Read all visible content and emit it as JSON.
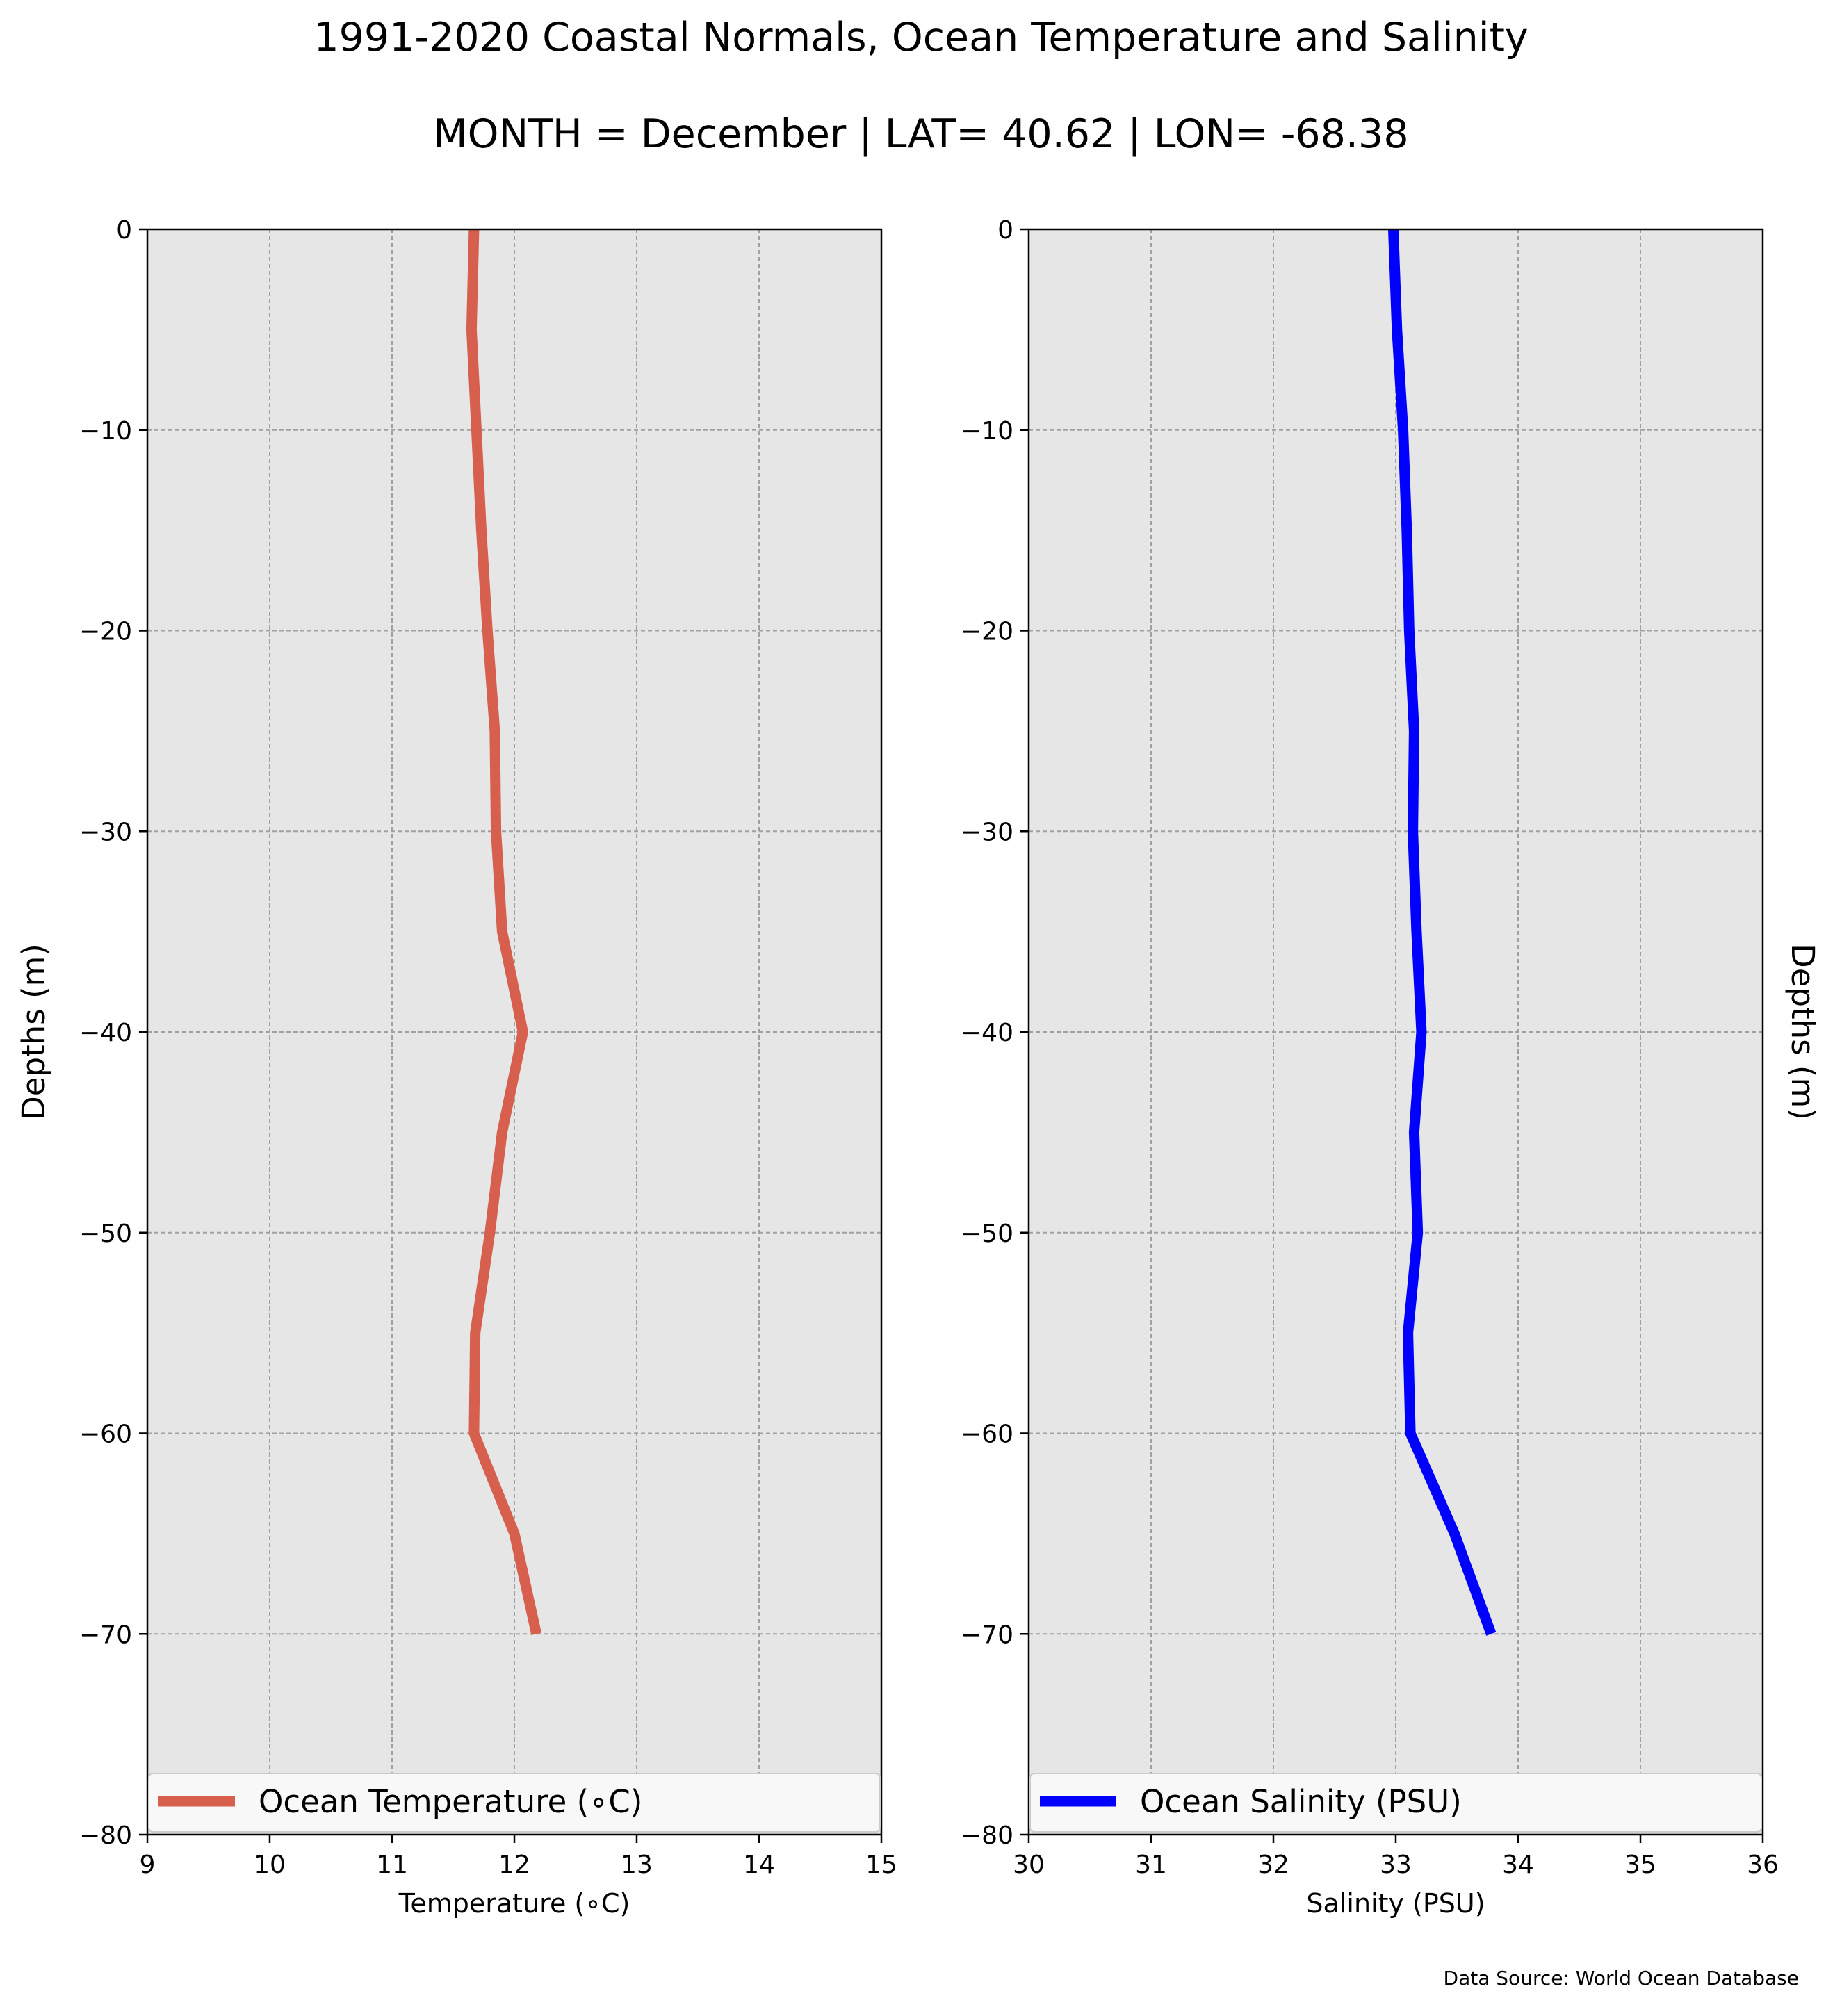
{
  "title": "1991-2020 Coastal Normals, Ocean Temperature and Salinity",
  "subtitle": "MONTH = December | LAT= 40.62 | LON= -68.38",
  "source": "Data Source: World Ocean Database",
  "chart_data": [
    {
      "type": "line",
      "xlabel": "Temperature ($^\\circ$C)",
      "xlabel_display": "Temperature (∘C)",
      "ylabel": "Depths (m)",
      "xlim": [
        9,
        15
      ],
      "ylim": [
        -80,
        0
      ],
      "xticks": [
        "9",
        "10",
        "11",
        "12",
        "13",
        "14",
        "15"
      ],
      "yticks": [
        "0",
        "−10",
        "−20",
        "−30",
        "−40",
        "−50",
        "−60",
        "−70",
        "−80"
      ],
      "grid": true,
      "legend_position": "lower center",
      "series": [
        {
          "name": "Ocean Temperature (∘C)",
          "color": "#d65f4e",
          "depths": [
            0,
            -5,
            -10,
            -15,
            -20,
            -25,
            -30,
            -35,
            -40,
            -45,
            -50,
            -55,
            -60,
            -65,
            -70
          ],
          "values": [
            11.67,
            11.65,
            11.69,
            11.73,
            11.78,
            11.84,
            11.85,
            11.9,
            12.07,
            11.9,
            11.8,
            11.68,
            11.67,
            12.0,
            12.18
          ]
        }
      ]
    },
    {
      "type": "line",
      "xlabel": "Salinity (PSU)",
      "ylabel": "Depths (m)",
      "xlim": [
        30,
        36
      ],
      "ylim": [
        -80,
        0
      ],
      "xticks": [
        "30",
        "31",
        "32",
        "33",
        "34",
        "35",
        "36"
      ],
      "yticks": [
        "0",
        "−10",
        "−20",
        "−30",
        "−40",
        "−50",
        "−60",
        "−70",
        "−80"
      ],
      "grid": true,
      "legend_position": "lower center",
      "series": [
        {
          "name": "Ocean Salinity (PSU)",
          "color": "#0000ff",
          "depths": [
            0,
            -5,
            -10,
            -15,
            -20,
            -25,
            -30,
            -35,
            -40,
            -45,
            -50,
            -55,
            -60,
            -65,
            -70
          ],
          "values": [
            32.98,
            33.01,
            33.06,
            33.09,
            33.11,
            33.15,
            33.14,
            33.17,
            33.21,
            33.15,
            33.18,
            33.1,
            33.12,
            33.48,
            33.78
          ]
        }
      ]
    }
  ]
}
